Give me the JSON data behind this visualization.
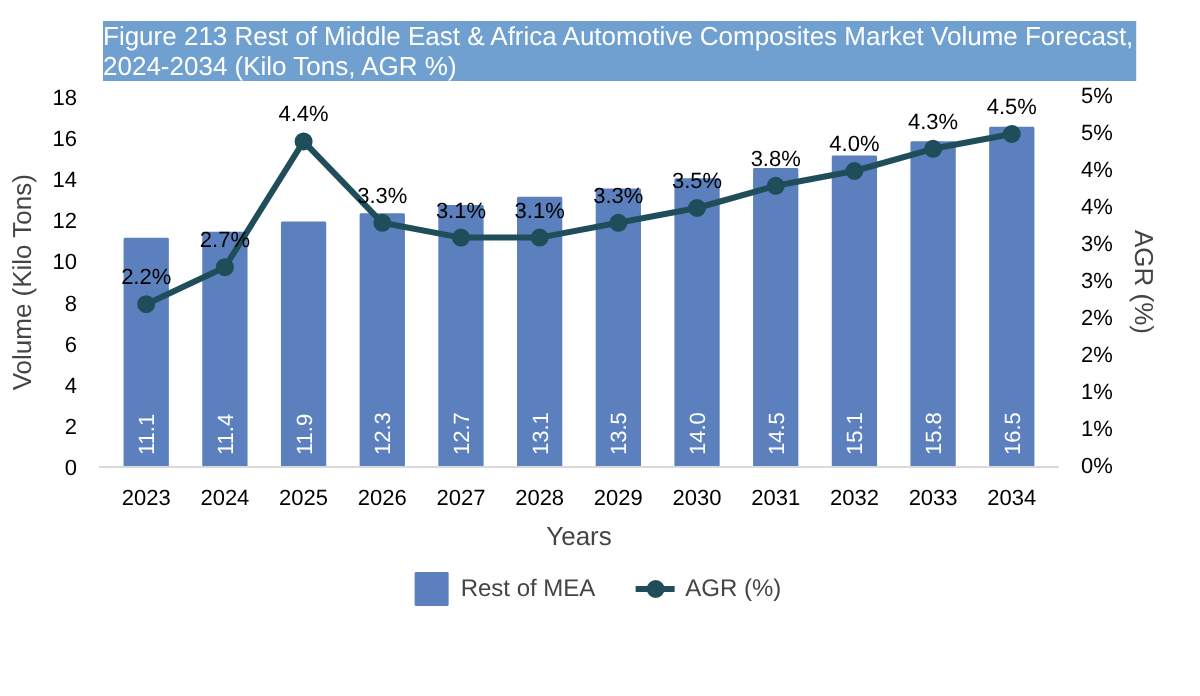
{
  "chart_data": {
    "type": "bar",
    "title": "Figure 213 Rest of Middle East & Africa Automotive Composites Market Volume Forecast, 2024-2034 (Kilo Tons, AGR %)",
    "xlabel": "Years",
    "ylabel": "Volume (Kilo Tons)",
    "y2label": "AGR (%)",
    "categories": [
      "2023",
      "2024",
      "2025",
      "2026",
      "2027",
      "2028",
      "2029",
      "2030",
      "2031",
      "2032",
      "2033",
      "2034"
    ],
    "series": [
      {
        "name": "Rest of MEA",
        "color": "#5b80bd",
        "values": [
          11.1,
          11.4,
          11.9,
          12.3,
          12.7,
          13.1,
          13.5,
          14.0,
          14.5,
          15.1,
          15.8,
          16.5
        ],
        "value_labels": [
          "11.1",
          "11.4",
          "11.9",
          "12.3",
          "12.7",
          "13.1",
          "13.5",
          "14.0",
          "14.5",
          "15.1",
          "15.8",
          "16.5"
        ]
      },
      {
        "name": "AGR (%)",
        "type": "line",
        "axis": "y2",
        "color": "#1f4e5a",
        "values": [
          2.2,
          2.7,
          4.4,
          3.3,
          3.1,
          3.1,
          3.3,
          3.5,
          3.8,
          4.0,
          4.3,
          4.5
        ],
        "value_labels": [
          "2.2%",
          "2.7%",
          "4.4%",
          "3.3%",
          "3.1%",
          "3.1%",
          "3.3%",
          "3.5%",
          "3.8%",
          "4.0%",
          "4.3%",
          "4.5%"
        ]
      }
    ],
    "ylim": [
      0,
      18
    ],
    "yticks": [
      0,
      2,
      4,
      6,
      8,
      10,
      12,
      14,
      16,
      18
    ],
    "y2lim": [
      0,
      5
    ],
    "y2ticks": [
      {
        "value": 0,
        "label": "0%"
      },
      {
        "value": 0.5,
        "label": "1%"
      },
      {
        "value": 1,
        "label": "1%"
      },
      {
        "value": 1.5,
        "label": "2%"
      },
      {
        "value": 2,
        "label": "2%"
      },
      {
        "value": 2.5,
        "label": "3%"
      },
      {
        "value": 3,
        "label": "3%"
      },
      {
        "value": 3.5,
        "label": "4%"
      },
      {
        "value": 4,
        "label": "4%"
      },
      {
        "value": 4.5,
        "label": "5%"
      },
      {
        "value": 5,
        "label": "5%"
      }
    ],
    "grid": false,
    "legend": "bottom",
    "marker": "circle",
    "line_style": "solid"
  }
}
